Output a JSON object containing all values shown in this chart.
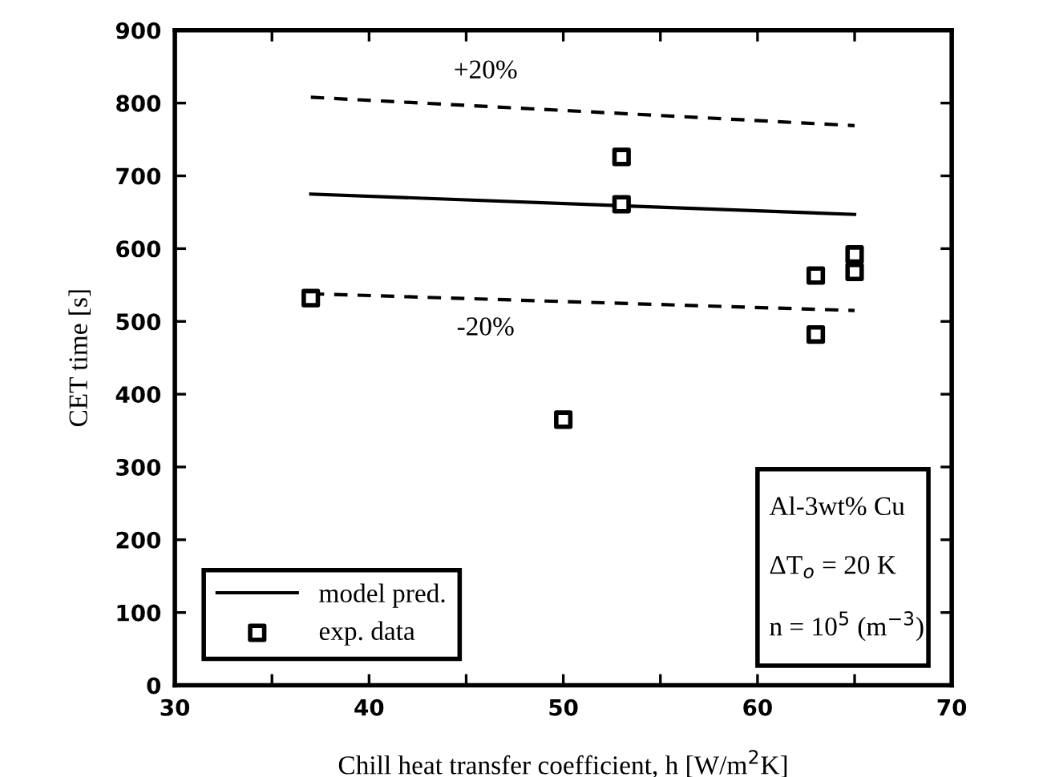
{
  "chart_data": {
    "type": "line",
    "xlabel": "Chill heat transfer coefficient, h [W/m$^{2}$K]",
    "ylabel": "CET time [s]",
    "xlim": [
      30,
      70
    ],
    "ylim": [
      0,
      900
    ],
    "xticks": [
      30,
      {
        "value": 35,
        "label": null
      },
      40,
      {
        "value": 45,
        "label": null
      },
      50,
      {
        "value": 55,
        "label": null
      },
      60,
      {
        "value": 65,
        "label": null
      },
      70
    ],
    "yticks": [
      0,
      100,
      200,
      300,
      400,
      500,
      600,
      700,
      800,
      900
    ],
    "grid": false,
    "legend": "bottom left",
    "series": [
      {
        "name": "model pred.",
        "line_style": "solid",
        "marker": "none",
        "color": "#000000",
        "x": [
          37,
          65
        ],
        "values": [
          675,
          647
        ]
      },
      {
        "line_style": "dashed",
        "marker": "none",
        "color": "#000000",
        "x": [
          37,
          65
        ],
        "values": [
          808,
          769
        ]
      },
      {
        "line_style": "dashed",
        "marker": "none",
        "color": "#000000",
        "x": [
          37,
          65
        ],
        "values": [
          538,
          515
        ]
      },
      {
        "name": "exp. data",
        "type": "scatter",
        "marker": "square",
        "color": "#000000",
        "x": [
          37,
          50,
          53,
          53,
          63,
          63,
          65,
          65
        ],
        "values": [
          532,
          365,
          726,
          661,
          563,
          482,
          592,
          568
        ]
      }
    ],
    "annotations": [
      {
        "text": "+20%",
        "x": 46,
        "y": 808
      },
      {
        "text": "-20%",
        "x": 46,
        "y": 531
      },
      "Al-3wt% Cu",
      "ΔT$_{o}$ = 20 K",
      "n = 10$^{5}$ (m$^{−3}$)"
    ]
  }
}
